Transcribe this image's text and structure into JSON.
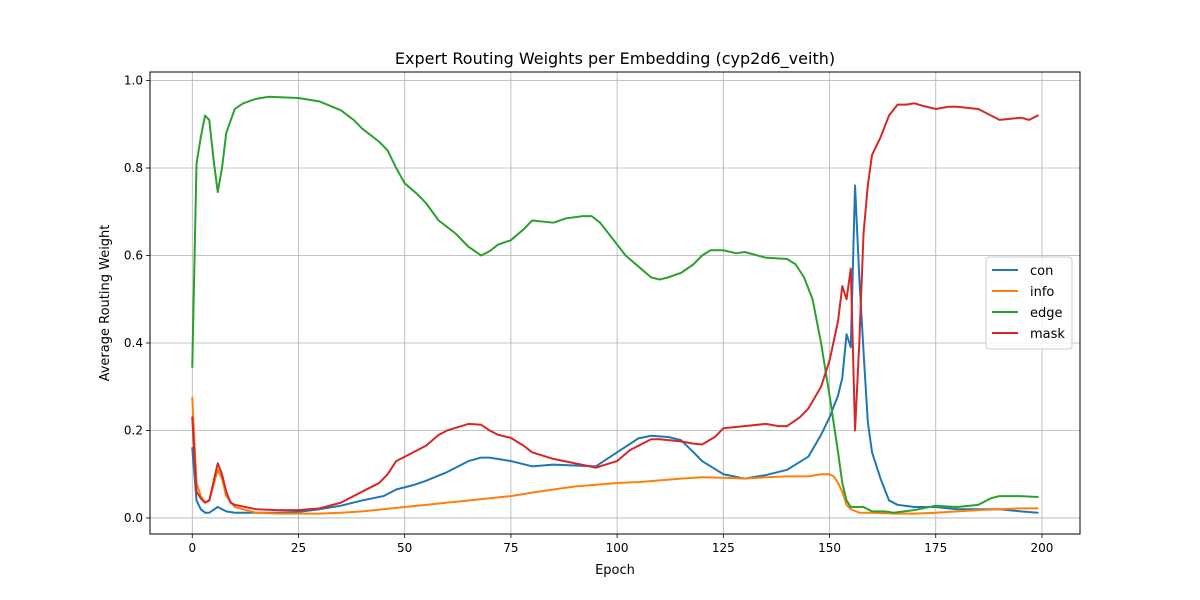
{
  "chart_data": {
    "type": "line",
    "title": "Expert Routing Weights per Embedding (cyp2d6_veith)",
    "xlabel": "Epoch",
    "ylabel": "Average Routing Weight",
    "xlim": [
      -9.95,
      208.95
    ],
    "ylim": [
      -0.0367,
      1.0195
    ],
    "xticks": [
      0,
      25,
      50,
      75,
      100,
      125,
      150,
      175,
      200
    ],
    "xtick_labels": [
      "0",
      "25",
      "50",
      "75",
      "100",
      "125",
      "150",
      "175",
      "200"
    ],
    "yticks": [
      0.0,
      0.2,
      0.4,
      0.6,
      0.8,
      1.0
    ],
    "ytick_labels": [
      "0.0",
      "0.2",
      "0.4",
      "0.6",
      "0.8",
      "1.0"
    ],
    "grid": true,
    "legend_position": "center-right",
    "series": [
      {
        "name": "con",
        "color": "#1f77b4",
        "points": [
          [
            0,
            0.16
          ],
          [
            1,
            0.04
          ],
          [
            2,
            0.02
          ],
          [
            3,
            0.012
          ],
          [
            4,
            0.012
          ],
          [
            6,
            0.025
          ],
          [
            8,
            0.015
          ],
          [
            10,
            0.012
          ],
          [
            15,
            0.012
          ],
          [
            20,
            0.012
          ],
          [
            25,
            0.014
          ],
          [
            30,
            0.02
          ],
          [
            35,
            0.028
          ],
          [
            40,
            0.04
          ],
          [
            45,
            0.05
          ],
          [
            48,
            0.065
          ],
          [
            52,
            0.075
          ],
          [
            55,
            0.085
          ],
          [
            60,
            0.105
          ],
          [
            65,
            0.13
          ],
          [
            68,
            0.138
          ],
          [
            70,
            0.138
          ],
          [
            75,
            0.13
          ],
          [
            80,
            0.118
          ],
          [
            85,
            0.122
          ],
          [
            90,
            0.12
          ],
          [
            95,
            0.118
          ],
          [
            100,
            0.15
          ],
          [
            105,
            0.182
          ],
          [
            108,
            0.188
          ],
          [
            112,
            0.185
          ],
          [
            115,
            0.178
          ],
          [
            118,
            0.15
          ],
          [
            120,
            0.13
          ],
          [
            125,
            0.1
          ],
          [
            130,
            0.09
          ],
          [
            135,
            0.098
          ],
          [
            140,
            0.11
          ],
          [
            145,
            0.14
          ],
          [
            148,
            0.19
          ],
          [
            150,
            0.23
          ],
          [
            152,
            0.28
          ],
          [
            153,
            0.32
          ],
          [
            154,
            0.42
          ],
          [
            155,
            0.39
          ],
          [
            156,
            0.76
          ],
          [
            157,
            0.55
          ],
          [
            158,
            0.38
          ],
          [
            159,
            0.22
          ],
          [
            160,
            0.15
          ],
          [
            162,
            0.09
          ],
          [
            164,
            0.04
          ],
          [
            166,
            0.03
          ],
          [
            170,
            0.025
          ],
          [
            175,
            0.025
          ],
          [
            180,
            0.02
          ],
          [
            185,
            0.02
          ],
          [
            190,
            0.02
          ],
          [
            195,
            0.015
          ],
          [
            199,
            0.012
          ]
        ]
      },
      {
        "name": "info",
        "color": "#ff7f0e",
        "points": [
          [
            0,
            0.275
          ],
          [
            1,
            0.08
          ],
          [
            2,
            0.05
          ],
          [
            3,
            0.035
          ],
          [
            4,
            0.04
          ],
          [
            6,
            0.11
          ],
          [
            7,
            0.09
          ],
          [
            8,
            0.05
          ],
          [
            10,
            0.025
          ],
          [
            15,
            0.012
          ],
          [
            20,
            0.01
          ],
          [
            25,
            0.01
          ],
          [
            30,
            0.01
          ],
          [
            35,
            0.012
          ],
          [
            40,
            0.015
          ],
          [
            45,
            0.02
          ],
          [
            50,
            0.025
          ],
          [
            55,
            0.03
          ],
          [
            60,
            0.035
          ],
          [
            65,
            0.04
          ],
          [
            70,
            0.045
          ],
          [
            75,
            0.05
          ],
          [
            80,
            0.058
          ],
          [
            85,
            0.065
          ],
          [
            90,
            0.072
          ],
          [
            95,
            0.076
          ],
          [
            100,
            0.08
          ],
          [
            105,
            0.082
          ],
          [
            110,
            0.086
          ],
          [
            115,
            0.09
          ],
          [
            120,
            0.093
          ],
          [
            125,
            0.092
          ],
          [
            130,
            0.09
          ],
          [
            135,
            0.093
          ],
          [
            140,
            0.095
          ],
          [
            145,
            0.095
          ],
          [
            148,
            0.1
          ],
          [
            150,
            0.1
          ],
          [
            151,
            0.095
          ],
          [
            152,
            0.08
          ],
          [
            153,
            0.06
          ],
          [
            154,
            0.03
          ],
          [
            155,
            0.02
          ],
          [
            157,
            0.012
          ],
          [
            160,
            0.012
          ],
          [
            165,
            0.01
          ],
          [
            170,
            0.01
          ],
          [
            175,
            0.012
          ],
          [
            180,
            0.015
          ],
          [
            185,
            0.018
          ],
          [
            190,
            0.02
          ],
          [
            195,
            0.022
          ],
          [
            199,
            0.022
          ]
        ]
      },
      {
        "name": "edge",
        "color": "#2ca02c",
        "points": [
          [
            0,
            0.345
          ],
          [
            1,
            0.81
          ],
          [
            2,
            0.87
          ],
          [
            3,
            0.92
          ],
          [
            4,
            0.91
          ],
          [
            5,
            0.82
          ],
          [
            6,
            0.745
          ],
          [
            7,
            0.8
          ],
          [
            8,
            0.88
          ],
          [
            10,
            0.935
          ],
          [
            12,
            0.948
          ],
          [
            15,
            0.958
          ],
          [
            18,
            0.963
          ],
          [
            20,
            0.962
          ],
          [
            25,
            0.96
          ],
          [
            30,
            0.952
          ],
          [
            35,
            0.932
          ],
          [
            38,
            0.91
          ],
          [
            40,
            0.89
          ],
          [
            44,
            0.86
          ],
          [
            46,
            0.84
          ],
          [
            48,
            0.8
          ],
          [
            50,
            0.765
          ],
          [
            53,
            0.74
          ],
          [
            55,
            0.72
          ],
          [
            58,
            0.68
          ],
          [
            62,
            0.65
          ],
          [
            65,
            0.62
          ],
          [
            68,
            0.6
          ],
          [
            70,
            0.61
          ],
          [
            72,
            0.625
          ],
          [
            75,
            0.635
          ],
          [
            78,
            0.66
          ],
          [
            80,
            0.68
          ],
          [
            85,
            0.675
          ],
          [
            88,
            0.685
          ],
          [
            92,
            0.69
          ],
          [
            94,
            0.69
          ],
          [
            96,
            0.675
          ],
          [
            98,
            0.65
          ],
          [
            100,
            0.625
          ],
          [
            102,
            0.6
          ],
          [
            105,
            0.575
          ],
          [
            108,
            0.55
          ],
          [
            110,
            0.545
          ],
          [
            112,
            0.55
          ],
          [
            115,
            0.56
          ],
          [
            118,
            0.58
          ],
          [
            120,
            0.6
          ],
          [
            122,
            0.612
          ],
          [
            125,
            0.612
          ],
          [
            128,
            0.605
          ],
          [
            130,
            0.608
          ],
          [
            135,
            0.595
          ],
          [
            140,
            0.592
          ],
          [
            142,
            0.58
          ],
          [
            144,
            0.55
          ],
          [
            146,
            0.5
          ],
          [
            148,
            0.4
          ],
          [
            150,
            0.28
          ],
          [
            152,
            0.15
          ],
          [
            153,
            0.08
          ],
          [
            154,
            0.04
          ],
          [
            155,
            0.025
          ],
          [
            158,
            0.025
          ],
          [
            160,
            0.015
          ],
          [
            163,
            0.015
          ],
          [
            165,
            0.012
          ],
          [
            170,
            0.018
          ],
          [
            175,
            0.028
          ],
          [
            180,
            0.025
          ],
          [
            185,
            0.03
          ],
          [
            188,
            0.045
          ],
          [
            190,
            0.05
          ],
          [
            195,
            0.05
          ],
          [
            199,
            0.048
          ]
        ]
      },
      {
        "name": "mask",
        "color": "#d62728",
        "points": [
          [
            0,
            0.23
          ],
          [
            1,
            0.06
          ],
          [
            2,
            0.045
          ],
          [
            3,
            0.035
          ],
          [
            4,
            0.04
          ],
          [
            6,
            0.125
          ],
          [
            7,
            0.1
          ],
          [
            8,
            0.06
          ],
          [
            9,
            0.035
          ],
          [
            10,
            0.03
          ],
          [
            15,
            0.02
          ],
          [
            20,
            0.018
          ],
          [
            25,
            0.018
          ],
          [
            30,
            0.022
          ],
          [
            35,
            0.035
          ],
          [
            40,
            0.06
          ],
          [
            44,
            0.08
          ],
          [
            46,
            0.1
          ],
          [
            48,
            0.13
          ],
          [
            50,
            0.14
          ],
          [
            55,
            0.165
          ],
          [
            58,
            0.19
          ],
          [
            60,
            0.2
          ],
          [
            65,
            0.215
          ],
          [
            68,
            0.213
          ],
          [
            70,
            0.2
          ],
          [
            72,
            0.19
          ],
          [
            75,
            0.183
          ],
          [
            78,
            0.165
          ],
          [
            80,
            0.15
          ],
          [
            85,
            0.135
          ],
          [
            90,
            0.125
          ],
          [
            95,
            0.115
          ],
          [
            100,
            0.13
          ],
          [
            103,
            0.155
          ],
          [
            106,
            0.17
          ],
          [
            108,
            0.18
          ],
          [
            110,
            0.18
          ],
          [
            115,
            0.175
          ],
          [
            118,
            0.17
          ],
          [
            120,
            0.168
          ],
          [
            123,
            0.185
          ],
          [
            125,
            0.205
          ],
          [
            130,
            0.21
          ],
          [
            135,
            0.215
          ],
          [
            138,
            0.21
          ],
          [
            140,
            0.21
          ],
          [
            143,
            0.23
          ],
          [
            145,
            0.25
          ],
          [
            148,
            0.3
          ],
          [
            150,
            0.36
          ],
          [
            152,
            0.45
          ],
          [
            153,
            0.53
          ],
          [
            154,
            0.5
          ],
          [
            155,
            0.57
          ],
          [
            156,
            0.2
          ],
          [
            157,
            0.4
          ],
          [
            158,
            0.65
          ],
          [
            159,
            0.76
          ],
          [
            160,
            0.83
          ],
          [
            162,
            0.87
          ],
          [
            164,
            0.92
          ],
          [
            166,
            0.945
          ],
          [
            168,
            0.945
          ],
          [
            170,
            0.948
          ],
          [
            172,
            0.942
          ],
          [
            175,
            0.935
          ],
          [
            178,
            0.94
          ],
          [
            180,
            0.94
          ],
          [
            185,
            0.935
          ],
          [
            188,
            0.92
          ],
          [
            190,
            0.91
          ],
          [
            195,
            0.915
          ],
          [
            197,
            0.91
          ],
          [
            199,
            0.92
          ]
        ]
      }
    ]
  }
}
